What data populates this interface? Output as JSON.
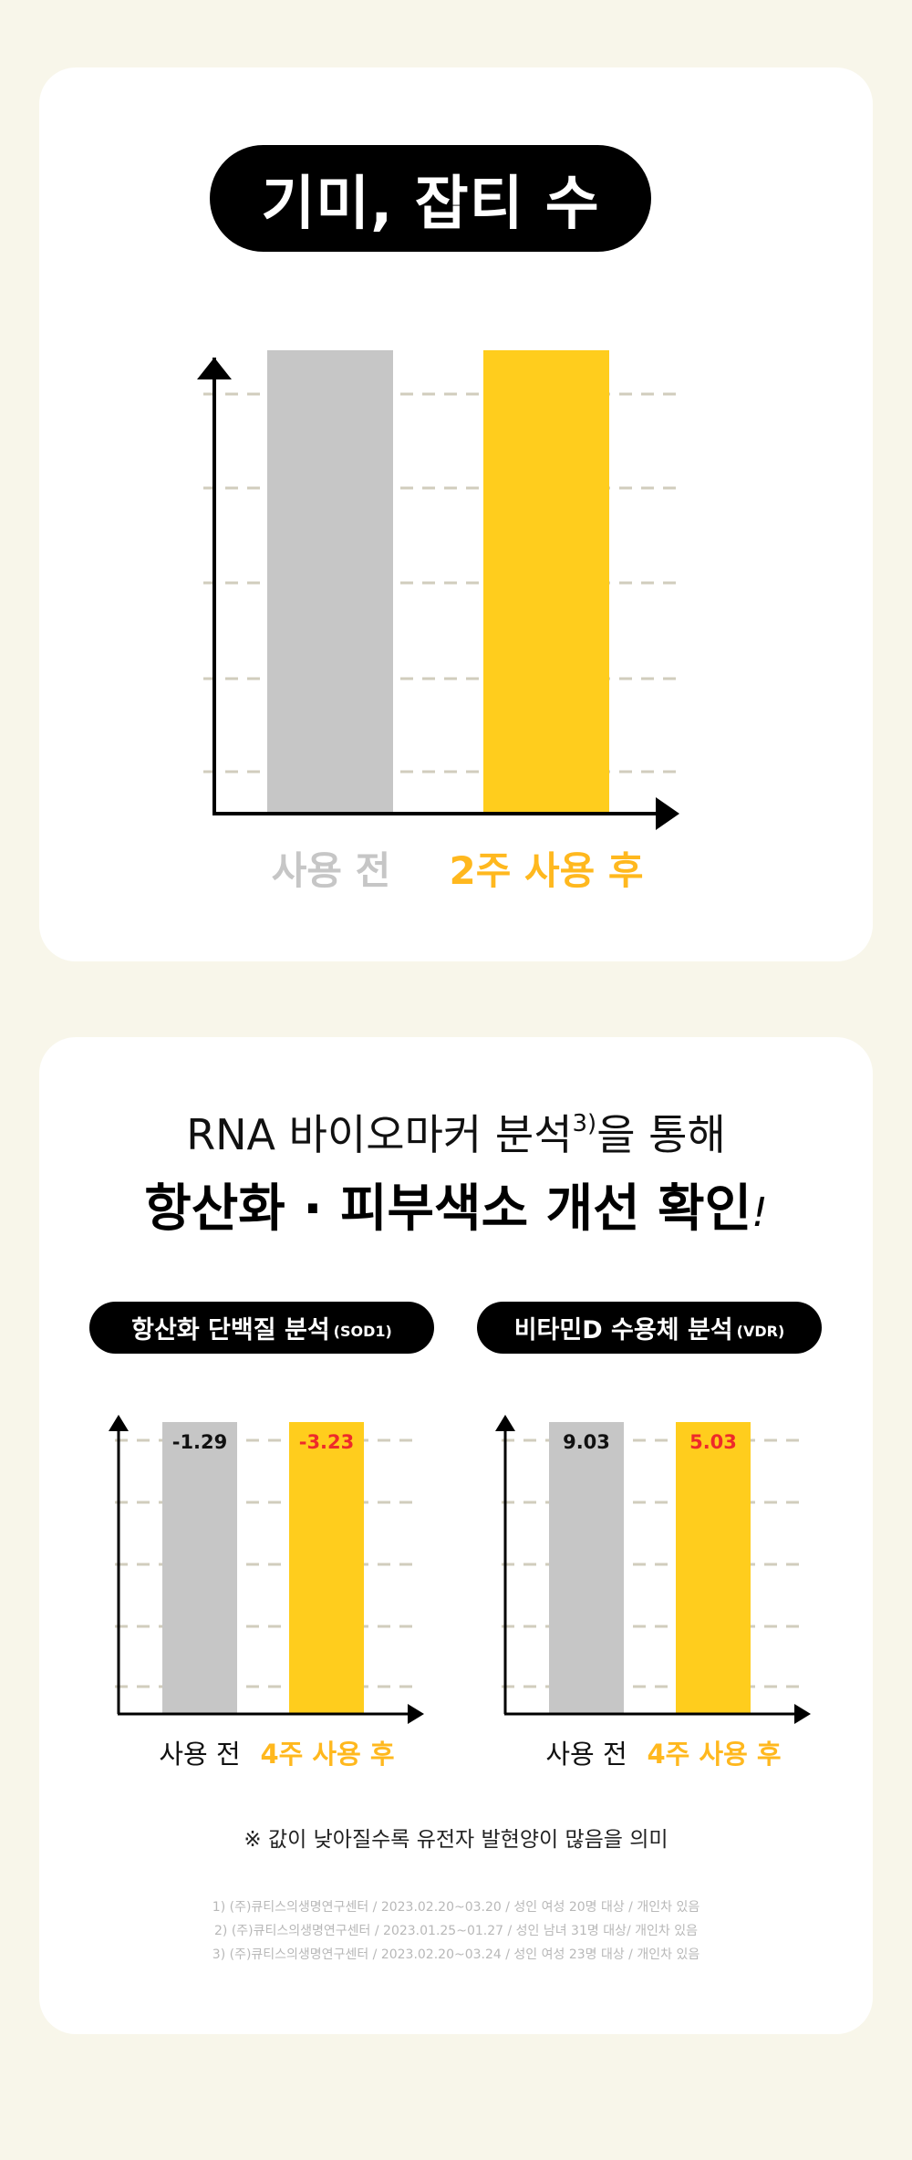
{
  "colors": {
    "background": "#f8f6ea",
    "before": "#c6c6c6",
    "after": "#ffcd1d",
    "after_text": "#ffb81e",
    "negative_text": "#ee2a2a",
    "grid": "#d1cdbd"
  },
  "section1": {
    "title": "기미, 잡티 수",
    "before_label": "사용 전",
    "after_label": "2주 사용 후"
  },
  "section2": {
    "headline_line1_prefix": "RNA 바이오마커 분석",
    "headline_line1_sup": "3)",
    "headline_line1_suffix": "을 통해",
    "headline_line2": "항산화 · 피부색소 개선 확인",
    "headline_line2_mark": "!",
    "note": "※ 값이 낮아질수록 유전자 발현양이 많음을 의미",
    "footnotes": [
      "1) (주)큐티스의생명연구센터 / 2023.02.20~03.20 / 성인 여성 20명 대상 / 개인차 있음",
      "2) (주)큐티스의생명연구센터 / 2023.01.25~01.27 / 성인 남녀 31명 대상/ 개인차 있음",
      "3) (주)큐티스의생명연구센터 / 2023.02.20~03.24 / 성인 여성 23명 대상 / 개인차 있음"
    ]
  },
  "chart_data": [
    {
      "type": "bar",
      "title": "기미, 잡티 수",
      "categories": [
        "사용 전",
        "2주 사용 후"
      ],
      "values": [
        100,
        100
      ],
      "grid": true
    },
    {
      "type": "bar",
      "title": "항산화 단백질 분석",
      "title_code": "(SOD1)",
      "categories": [
        "사용 전",
        "4주 사용 후"
      ],
      "values": [
        -1.29,
        -3.23
      ],
      "value_labels": [
        "-1.29",
        "-3.23"
      ],
      "grid": true
    },
    {
      "type": "bar",
      "title": "비타민D 수용체 분석",
      "title_code": "(VDR)",
      "categories": [
        "사용 전",
        "4주 사용 후"
      ],
      "values": [
        9.03,
        5.03
      ],
      "value_labels": [
        "9.03",
        "5.03"
      ],
      "grid": true
    }
  ]
}
